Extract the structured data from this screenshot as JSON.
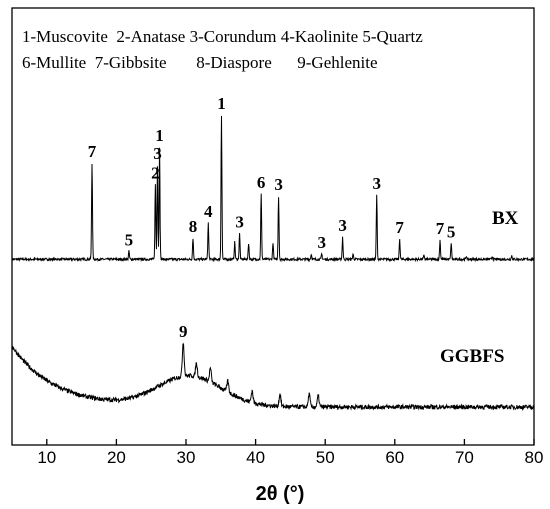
{
  "chart_data": {
    "type": "line",
    "xlabel": "2θ (°)",
    "xlim": [
      5,
      80
    ],
    "x_ticks": [
      "10",
      "20",
      "30",
      "40",
      "50",
      "60",
      "70",
      "80"
    ],
    "y_ticks_visible": false,
    "legend_lines": [
      "1-Muscovite  2-Anatase 3-Corundum 4-Kaolinite 5-Quartz",
      "6-Mullite  7-Gibbsite       8-Diaspore      9-Gehlenite"
    ],
    "series": [
      {
        "name": "BX",
        "baseline": 100,
        "peaks": [
          {
            "x": 16.5,
            "y": 1000,
            "label": "7"
          },
          {
            "x": 21.8,
            "y": 175,
            "label": "5"
          },
          {
            "x": 25.6,
            "y": 800,
            "label": "2"
          },
          {
            "x": 25.9,
            "y": 980,
            "label": "3"
          },
          {
            "x": 26.2,
            "y": 1150,
            "label": "1"
          },
          {
            "x": 31.0,
            "y": 300,
            "label": "8"
          },
          {
            "x": 33.2,
            "y": 440,
            "label": "4"
          },
          {
            "x": 35.1,
            "y": 1450,
            "label": "1"
          },
          {
            "x": 37.0,
            "y": 260,
            "label": ""
          },
          {
            "x": 37.7,
            "y": 340,
            "label": "3"
          },
          {
            "x": 39.0,
            "y": 250,
            "label": ""
          },
          {
            "x": 40.8,
            "y": 710,
            "label": "6"
          },
          {
            "x": 42.5,
            "y": 260,
            "label": ""
          },
          {
            "x": 43.3,
            "y": 690,
            "label": "3"
          },
          {
            "x": 48.0,
            "y": 150,
            "label": ""
          },
          {
            "x": 49.5,
            "y": 150,
            "label": "3"
          },
          {
            "x": 52.5,
            "y": 310,
            "label": "3"
          },
          {
            "x": 54.0,
            "y": 150,
            "label": ""
          },
          {
            "x": 57.4,
            "y": 700,
            "label": "3"
          },
          {
            "x": 60.7,
            "y": 290,
            "label": "7"
          },
          {
            "x": 64.2,
            "y": 140,
            "label": ""
          },
          {
            "x": 66.5,
            "y": 280,
            "label": "7"
          },
          {
            "x": 68.1,
            "y": 250,
            "label": "5"
          },
          {
            "x": 70.3,
            "y": 130,
            "label": ""
          },
          {
            "x": 74.0,
            "y": 130,
            "label": ""
          },
          {
            "x": 76.8,
            "y": 135,
            "label": ""
          }
        ]
      },
      {
        "name": "GGBFS",
        "hump_center": 30.5,
        "hump_height": 190,
        "start_level": 380,
        "end_level": 0,
        "peaks": [
          {
            "x": 29.6,
            "y": 400,
            "label": "9"
          },
          {
            "x": 31.5,
            "y": 270,
            "label": ""
          },
          {
            "x": 33.5,
            "y": 240,
            "label": ""
          },
          {
            "x": 36.0,
            "y": 160,
            "label": ""
          },
          {
            "x": 39.5,
            "y": 100,
            "label": ""
          },
          {
            "x": 43.5,
            "y": 80,
            "label": ""
          },
          {
            "x": 47.7,
            "y": 80,
            "label": ""
          },
          {
            "x": 49.0,
            "y": 70,
            "label": ""
          }
        ]
      }
    ]
  }
}
